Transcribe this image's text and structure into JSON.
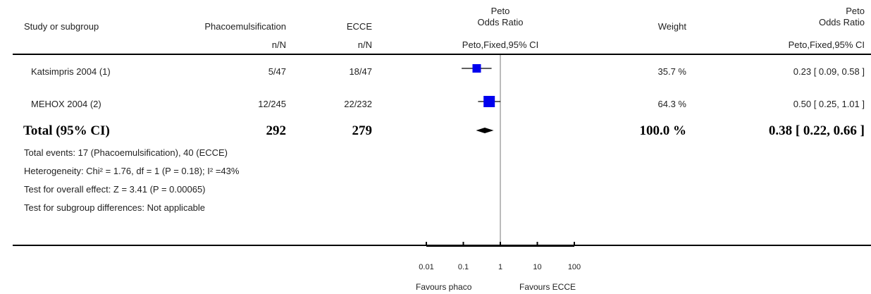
{
  "header": {
    "col_study": "Study or subgroup",
    "col_phaco": "Phacoemulsification",
    "col_ecce": "ECCE",
    "col_or_line1": "Peto",
    "col_or_line2": "Odds Ratio",
    "col_weight": "Weight",
    "col_or2_line1": "Peto",
    "col_or2_line2": "Odds Ratio",
    "sub_phaco": "n/N",
    "sub_ecce": "n/N",
    "sub_or": "Peto,Fixed,95% CI",
    "sub_or2": "Peto,Fixed,95% CI"
  },
  "studies": [
    {
      "name": "Katsimpris 2004 (1)",
      "phaco": "5/47",
      "ecce": "18/47",
      "weight": "35.7 %",
      "ci_text": "0.23 [ 0.09, 0.58 ]"
    },
    {
      "name": "MEHOX 2004 (2)",
      "phaco": "12/245",
      "ecce": "22/232",
      "weight": "64.3 %",
      "ci_text": "0.50 [ 0.25, 1.01 ]"
    }
  ],
  "total": {
    "label": "Total (95% CI)",
    "phaco": "292",
    "ecce": "279",
    "weight": "100.0 %",
    "ci_text": "0.38 [ 0.22, 0.66 ]"
  },
  "footnotes": {
    "events": "Total events: 17 (Phacoemulsification), 40 (ECCE)",
    "heterogeneity": "Heterogeneity: Chi² = 1.76, df = 1 (P = 0.18); I² =43%",
    "overall": "Test for overall effect: Z = 3.41 (P = 0.00065)",
    "subgroup": "Test for subgroup differences: Not applicable"
  },
  "axis": {
    "favours_left": "Favours phaco",
    "favours_right": "Favours ECCE"
  },
  "chart_data": {
    "type": "forest",
    "scale": "log",
    "xlim": [
      0.01,
      100
    ],
    "ticks": [
      {
        "value": 0.01,
        "label": "0.01"
      },
      {
        "value": 0.1,
        "label": "0.1"
      },
      {
        "value": 1,
        "label": "1"
      },
      {
        "value": 10,
        "label": "10"
      },
      {
        "value": 100,
        "label": "100"
      }
    ],
    "studies": [
      {
        "name": "Katsimpris 2004 (1)",
        "or": 0.23,
        "lower": 0.09,
        "upper": 0.58,
        "weight": 35.7
      },
      {
        "name": "MEHOX 2004 (2)",
        "or": 0.5,
        "lower": 0.25,
        "upper": 1.01,
        "weight": 64.3
      }
    ],
    "pooled": {
      "or": 0.38,
      "lower": 0.22,
      "upper": 0.66
    },
    "marker_color": "#0000ee"
  }
}
